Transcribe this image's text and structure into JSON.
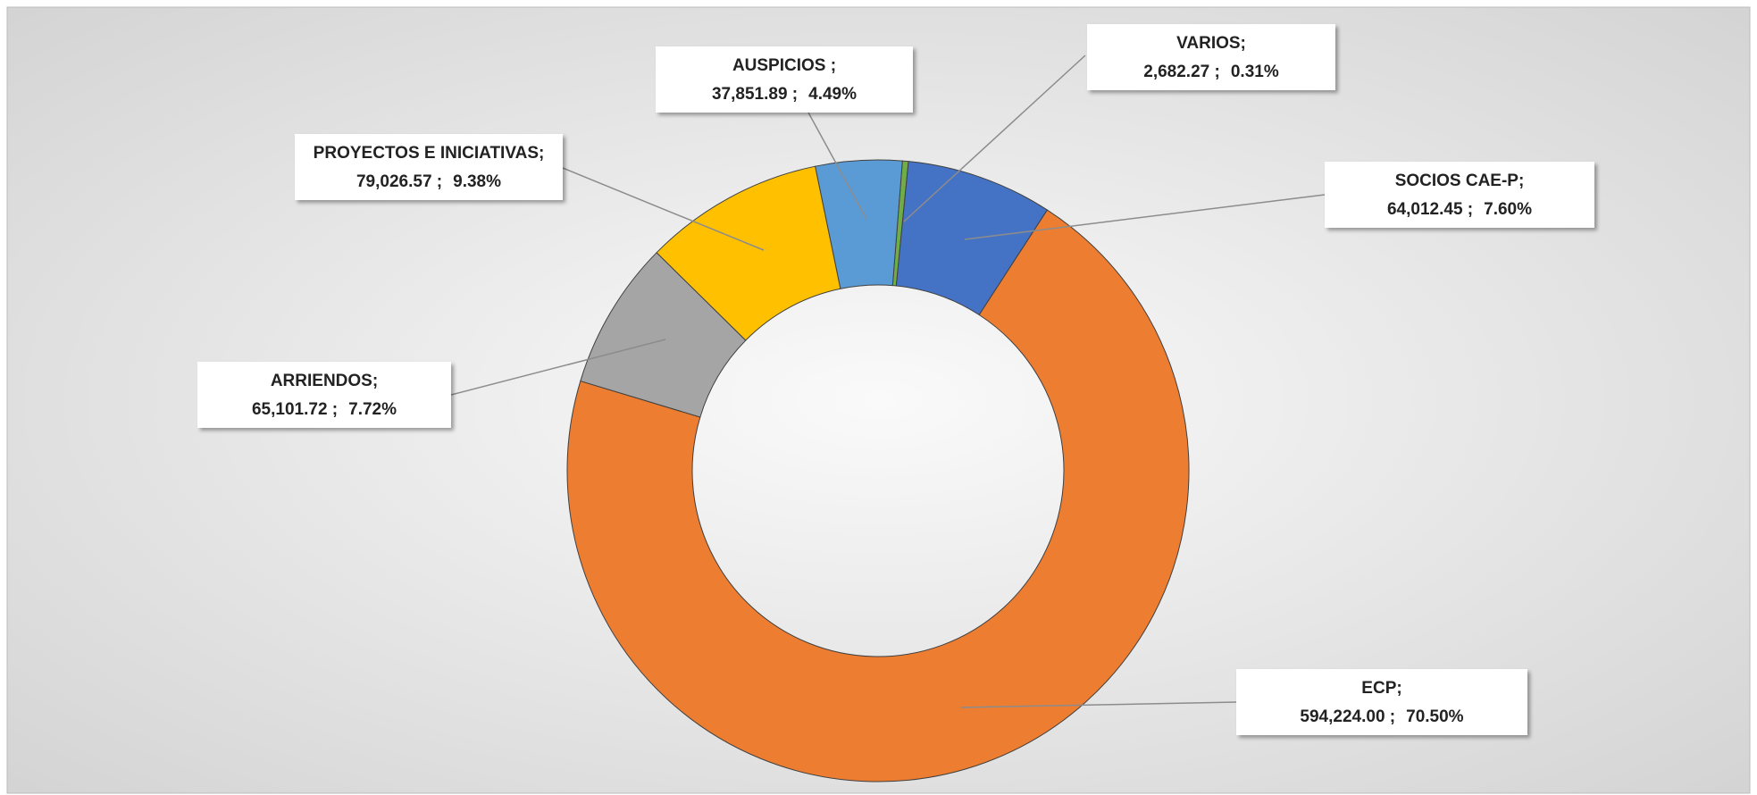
{
  "chart_data": {
    "type": "donut",
    "categories": [
      "VARIOS;",
      "SOCIOS CAE-P;",
      "ECP;",
      "ARRIENDOS;",
      "PROYECTOS E INICIATIVAS;",
      "AUSPICIOS ;"
    ],
    "values": [
      2682.27,
      64012.45,
      594224.0,
      65101.72,
      79026.57,
      37851.89
    ],
    "value_labels": [
      "2,682.27 ;",
      "64,012.45 ;",
      "594,224.00 ;",
      "65,101.72 ;",
      "79,026.57 ;",
      "37,851.89 ;"
    ],
    "percentages": [
      0.31,
      7.6,
      70.5,
      7.72,
      9.38,
      4.49
    ],
    "percent_labels": [
      "0.31%",
      "7.60%",
      "70.50%",
      "7.72%",
      "9.38%",
      "4.49%"
    ],
    "colors": [
      "#70ad47",
      "#4472c4",
      "#ed7d31",
      "#a5a5a5",
      "#ffc000",
      "#5b9bd5"
    ]
  }
}
